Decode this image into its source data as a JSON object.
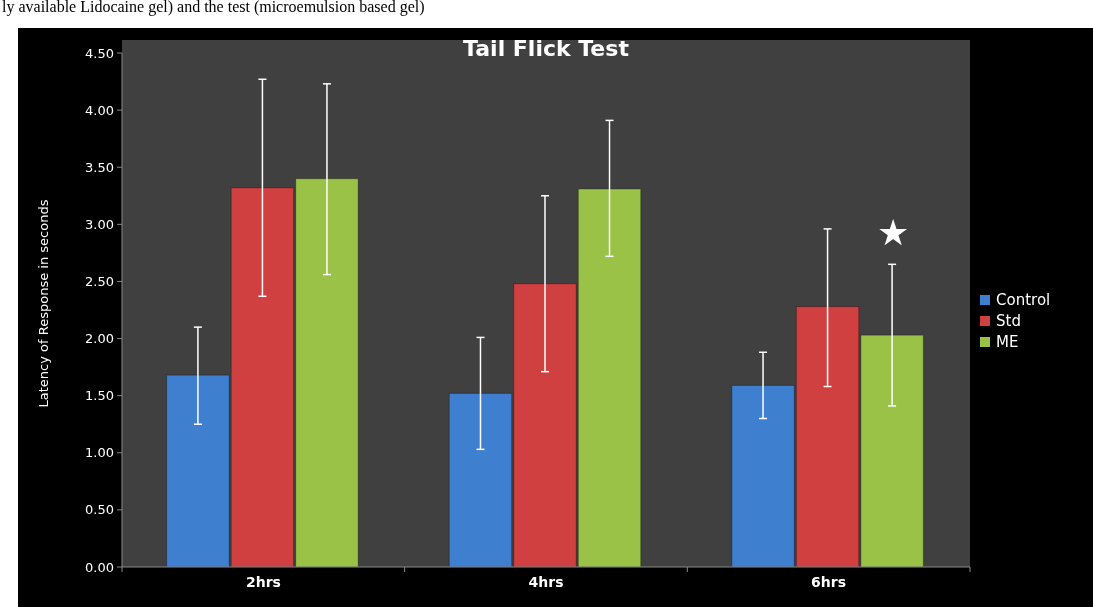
{
  "chart_data": {
    "type": "bar",
    "title": "Tail Flick Test",
    "ylabel": "Latency of Response in seconds",
    "categories": [
      "2hrs",
      "4hrs",
      "6hrs"
    ],
    "series": [
      {
        "name": "Control",
        "color": "#3f7fd0",
        "values": [
          1.68,
          1.52,
          1.59
        ],
        "errors": [
          [
            1.25,
            2.1
          ],
          [
            1.03,
            2.01
          ],
          [
            1.3,
            1.88
          ]
        ]
      },
      {
        "name": "Std",
        "color": "#d04040",
        "values": [
          3.32,
          2.48,
          2.28
        ],
        "errors": [
          [
            2.37,
            4.27
          ],
          [
            1.71,
            3.25
          ],
          [
            1.58,
            2.96
          ]
        ]
      },
      {
        "name": "ME",
        "color": "#9ac247",
        "values": [
          3.4,
          3.31,
          2.03
        ],
        "errors": [
          [
            2.56,
            4.23
          ],
          [
            2.72,
            3.91
          ],
          [
            1.41,
            2.65
          ]
        ]
      }
    ],
    "ylim": [
      0,
      4.5
    ],
    "yticks": [
      {
        "value": 0,
        "label": "0.00"
      },
      {
        "value": 0.5,
        "label": "0.50"
      },
      {
        "value": 1,
        "label": "1.00"
      },
      {
        "value": 1.5,
        "label": "1.50"
      },
      {
        "value": 2,
        "label": "2.00"
      },
      {
        "value": 2.5,
        "label": "2.50"
      },
      {
        "value": 3,
        "label": "3.00"
      },
      {
        "value": 3.5,
        "label": "3.50"
      },
      {
        "value": 4,
        "label": "4.00"
      },
      {
        "value": 4.5,
        "label": "4.50"
      }
    ],
    "legend": "right",
    "annotations": [
      "ly available Lidocaine gel) and the test (microemulsion based gel)",
      {
        "text": "★",
        "x": "6hrs",
        "y": 2.93
      }
    ]
  }
}
